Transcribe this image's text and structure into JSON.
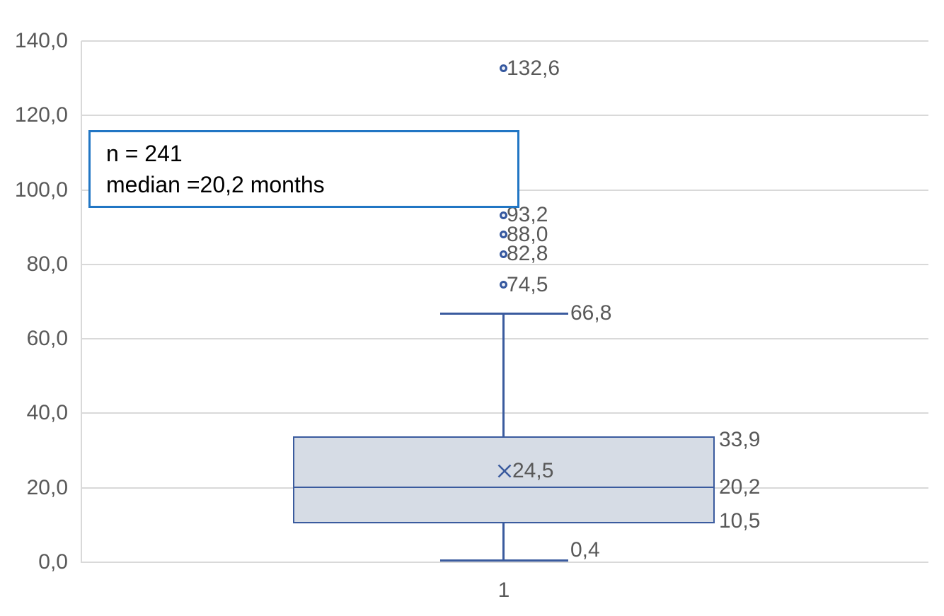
{
  "chart_data": {
    "type": "boxplot",
    "title": "",
    "categories": [
      "1"
    ],
    "y_axis": {
      "min": 0,
      "max": 140,
      "step": 20,
      "tick_labels": [
        "0,0",
        "20,0",
        "40,0",
        "60,0",
        "80,0",
        "100,0",
        "120,0",
        "140,0"
      ]
    },
    "grid": "horizontal",
    "legend_position": "none",
    "series": [
      {
        "name": "1",
        "whisker_low": 0.4,
        "q1": 10.5,
        "median": 20.2,
        "q3": 33.9,
        "whisker_high": 66.8,
        "mean": 24.5,
        "outliers": [
          132.6,
          93.2,
          88.0,
          82.8,
          74.5
        ],
        "labels": {
          "whisker_low": "0,4",
          "q1": "10,5",
          "median": "20,2",
          "q3": "33,9",
          "whisker_high": "66,8",
          "mean": "24,5",
          "outliers": [
            "132,6",
            "93,2",
            "88,0",
            "82,8",
            "74,5"
          ]
        }
      }
    ],
    "annotation": {
      "line1": "n = 241",
      "line2": "median =20,2 months"
    }
  },
  "colors": {
    "box_fill": "#D6DCE5",
    "box_border": "#3A5B9E",
    "whisker": "#3A5B9E",
    "median_line": "#3A5B9E",
    "mean_marker": "#3A5B9E",
    "outlier_ring": "#35589F",
    "outlier_fill": "#E9EDF6",
    "gridline": "#D9D9D9",
    "axis_line": "#D9D9D9",
    "tick_label": "#595959",
    "data_label": "#595959",
    "annotation_border": "#2176C4",
    "annotation_text": "#000000",
    "background": "#FFFFFF"
  }
}
